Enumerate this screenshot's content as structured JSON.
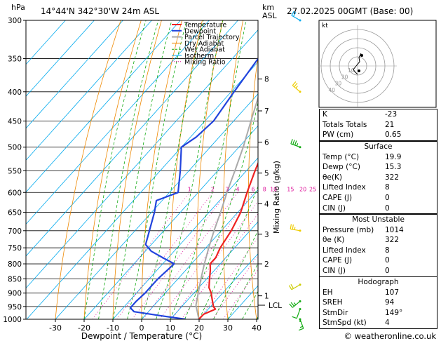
{
  "header": {
    "pressure_unit": "hPa",
    "location": "14°44'N  342°30'W  24m  ASL",
    "km_label": "km",
    "asl_label": "ASL",
    "datetime": "27.02.2025  00GMT  (Base: 00)"
  },
  "colors": {
    "temperature": "#ee2222",
    "dewpoint": "#2244dd",
    "parcel": "#aaaaaa",
    "dry_adiabat": "#ee8800",
    "wet_adiabat": "#11aa11",
    "isotherm": "#00aaee",
    "mixing_ratio": "#dd1199"
  },
  "legend": [
    {
      "label": "Temperature",
      "style": "temperature"
    },
    {
      "label": "Dewpoint",
      "style": "dewpoint"
    },
    {
      "label": "Parcel Trajectory",
      "style": "parcel"
    },
    {
      "label": "Dry Adiabat",
      "style": "dry_adiabat"
    },
    {
      "label": "Wet Adiabat",
      "style": "wet_adiabat"
    },
    {
      "label": "Isotherm",
      "style": "isotherm"
    },
    {
      "label": "Mixing Ratio",
      "style": "mixing_ratio"
    }
  ],
  "axis": {
    "xlabel": "Dewpoint / Temperature (°C)",
    "ylabel_right": "Mixing Ratio (g/kg)",
    "lcl_label": "LCL"
  },
  "footer": "© weatheronline.co.uk",
  "hodograph": {
    "unit_label": "kt",
    "ring_labels": [
      "10",
      "20",
      "30",
      "40"
    ]
  },
  "indices": [
    {
      "label": "K",
      "value": "-23"
    },
    {
      "label": "Totals Totals",
      "value": "21"
    },
    {
      "label": "PW (cm)",
      "value": "0.65"
    }
  ],
  "surface": {
    "title": "Surface",
    "rows": [
      {
        "label": "Temp (°C)",
        "value": "19.9"
      },
      {
        "label": "Dewp (°C)",
        "value": "15.3"
      },
      {
        "label": "θe(K)",
        "value": "322"
      },
      {
        "label": "Lifted Index",
        "value": "8"
      },
      {
        "label": "CAPE (J)",
        "value": "0"
      },
      {
        "label": "CIN (J)",
        "value": "0"
      }
    ]
  },
  "most_unstable": {
    "title": "Most Unstable",
    "rows": [
      {
        "label": "Pressure (mb)",
        "value": "1014"
      },
      {
        "label": "θe (K)",
        "value": "322"
      },
      {
        "label": "Lifted Index",
        "value": "8"
      },
      {
        "label": "CAPE (J)",
        "value": "0"
      },
      {
        "label": "CIN (J)",
        "value": "0"
      }
    ]
  },
  "hodograph_table": {
    "title": "Hodograph",
    "rows": [
      {
        "label": "EH",
        "value": "107"
      },
      {
        "label": "SREH",
        "value": "94"
      },
      {
        "label": "StmDir",
        "value": "149°"
      },
      {
        "label": "StmSpd (kt)",
        "value": "4"
      }
    ]
  },
  "chart_data": {
    "type": "line",
    "title": "14°44'N  342°30'W  24m  ASL",
    "xlabel": "Dewpoint / Temperature (°C)",
    "ylabel": "hPa",
    "xlim": [
      -35,
      40
    ],
    "ylim": [
      1000,
      300
    ],
    "y_scale": "log",
    "grid": true,
    "legend_position": "top-center",
    "x_ticks": [
      -30,
      -20,
      -10,
      0,
      10,
      20,
      30,
      40
    ],
    "pressure_ticks": [
      300,
      350,
      400,
      450,
      500,
      550,
      600,
      650,
      700,
      750,
      800,
      850,
      900,
      950,
      1000
    ],
    "mixing_ratio_labels": [
      1,
      2,
      3,
      4,
      6,
      8,
      10,
      15,
      20,
      25
    ],
    "km_ticks": [
      {
        "km": 1,
        "p": 910
      },
      {
        "km": 2,
        "p": 800
      },
      {
        "km": 3,
        "p": 710
      },
      {
        "km": 4,
        "p": 628
      },
      {
        "km": 5,
        "p": 555
      },
      {
        "km": 6,
        "p": 490
      },
      {
        "km": 7,
        "p": 432
      },
      {
        "km": 8,
        "p": 380
      }
    ],
    "lcl_pressure": 945,
    "series": [
      {
        "name": "Temperature",
        "points": [
          [
            1000,
            19.9
          ],
          [
            980,
            20
          ],
          [
            960,
            22.5
          ],
          [
            950,
            21
          ],
          [
            920,
            18
          ],
          [
            900,
            16
          ],
          [
            880,
            13.5
          ],
          [
            850,
            11
          ],
          [
            820,
            8.5
          ],
          [
            800,
            6.5
          ],
          [
            780,
            6.5
          ],
          [
            750,
            5
          ],
          [
            700,
            3.5
          ],
          [
            650,
            1
          ],
          [
            600,
            -3
          ],
          [
            550,
            -7
          ],
          [
            500,
            -11
          ],
          [
            450,
            -16
          ],
          [
            400,
            -23
          ],
          [
            350,
            -31
          ],
          [
            300,
            -40
          ]
        ]
      },
      {
        "name": "Dewpoint",
        "points": [
          [
            1000,
            15.3
          ],
          [
            985,
            5
          ],
          [
            970,
            -5
          ],
          [
            955,
            -7.5
          ],
          [
            930,
            -7.5
          ],
          [
            900,
            -7
          ],
          [
            850,
            -7
          ],
          [
            800,
            -6
          ],
          [
            780,
            -12
          ],
          [
            760,
            -18
          ],
          [
            740,
            -22
          ],
          [
            700,
            -25
          ],
          [
            650,
            -29
          ],
          [
            620,
            -32
          ],
          [
            600,
            -27
          ],
          [
            550,
            -33
          ],
          [
            500,
            -40
          ],
          [
            480,
            -38
          ],
          [
            450,
            -37
          ],
          [
            400,
            -39
          ],
          [
            350,
            -41
          ],
          [
            320,
            -38
          ],
          [
            300,
            -36
          ]
        ]
      },
      {
        "name": "Parcel Trajectory",
        "points": [
          [
            1000,
            19.9
          ],
          [
            945,
            14.5
          ],
          [
            900,
            11.5
          ],
          [
            850,
            8
          ],
          [
            800,
            4.5
          ],
          [
            750,
            1
          ],
          [
            700,
            -2.5
          ],
          [
            650,
            -6
          ],
          [
            600,
            -10
          ],
          [
            550,
            -14
          ],
          [
            500,
            -18.5
          ],
          [
            450,
            -24
          ],
          [
            400,
            -30
          ],
          [
            350,
            -37
          ],
          [
            300,
            -45
          ]
        ]
      }
    ],
    "wind_barbs": [
      {
        "p": 1000,
        "dir": 160,
        "spd": 5
      },
      {
        "p": 960,
        "dir": 200,
        "spd": 10
      },
      {
        "p": 930,
        "dir": 230,
        "spd": 15
      },
      {
        "p": 870,
        "dir": 240,
        "spd": 20
      },
      {
        "p": 700,
        "dir": 280,
        "spd": 15
      },
      {
        "p": 500,
        "dir": 290,
        "spd": 25
      },
      {
        "p": 400,
        "dir": 310,
        "spd": 15
      },
      {
        "p": 300,
        "dir": 300,
        "spd": 20
      }
    ]
  }
}
